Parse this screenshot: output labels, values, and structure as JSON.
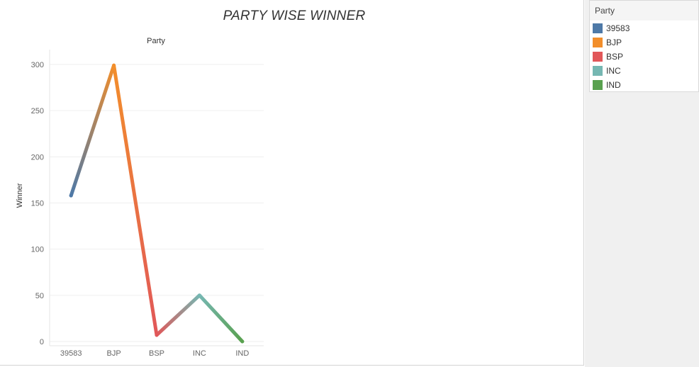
{
  "chart_data": {
    "type": "line",
    "title": "PARTY WISE WINNER",
    "header": "Party",
    "xlabel": "",
    "ylabel": "Winner",
    "categories": [
      "39583",
      "BJP",
      "BSP",
      "INC",
      "IND"
    ],
    "values": [
      158,
      299,
      7,
      50,
      0
    ],
    "yticks": [
      0,
      50,
      100,
      150,
      200,
      250,
      300
    ],
    "ylim": [
      0,
      320
    ],
    "colors": [
      "#4e79a7",
      "#f28e2b",
      "#e15759",
      "#76b7b2",
      "#59a14f"
    ],
    "grid": true,
    "legend_position": "right"
  },
  "legend": {
    "title": "Party",
    "items": [
      {
        "label": "39583",
        "color": "#4e79a7"
      },
      {
        "label": "BJP",
        "color": "#f28e2b"
      },
      {
        "label": "BSP",
        "color": "#e15759"
      },
      {
        "label": "INC",
        "color": "#76b7b2"
      },
      {
        "label": "IND",
        "color": "#59a14f"
      }
    ]
  }
}
